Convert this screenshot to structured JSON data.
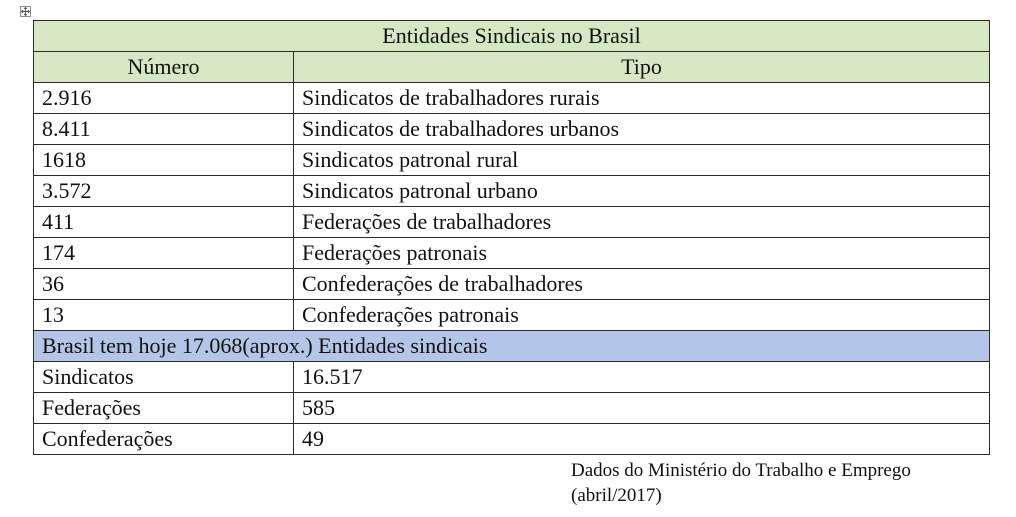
{
  "table": {
    "title": "Entidades Sindicais no Brasil",
    "headers": [
      "Número",
      "Tipo"
    ],
    "rows": [
      [
        "2.916",
        "Sindicatos de trabalhadores rurais"
      ],
      [
        "8.411",
        "Sindicatos de trabalhadores urbanos"
      ],
      [
        "1618",
        "Sindicatos patronal rural"
      ],
      [
        "3.572",
        "Sindicatos patronal urbano"
      ],
      [
        "411",
        "Federações de trabalhadores"
      ],
      [
        "174",
        "Federações patronais"
      ],
      [
        "36",
        "Confederações de trabalhadores"
      ],
      [
        "13",
        "Confederações patronais"
      ]
    ],
    "banner": "Brasil tem hoje 17.068(aprox.) Entidades sindicais",
    "summary_rows": [
      [
        "Sindicatos",
        "16.517"
      ],
      [
        "Federações",
        "585"
      ],
      [
        "Confederações",
        "49"
      ]
    ]
  },
  "source": {
    "line1": "Dados do Ministério do Trabalho e Emprego",
    "line2": "(abril/2017)"
  },
  "colors": {
    "header_green": "#d6e7c3",
    "banner_blue": "#b4c6e7",
    "border": "#2a2a2a"
  }
}
